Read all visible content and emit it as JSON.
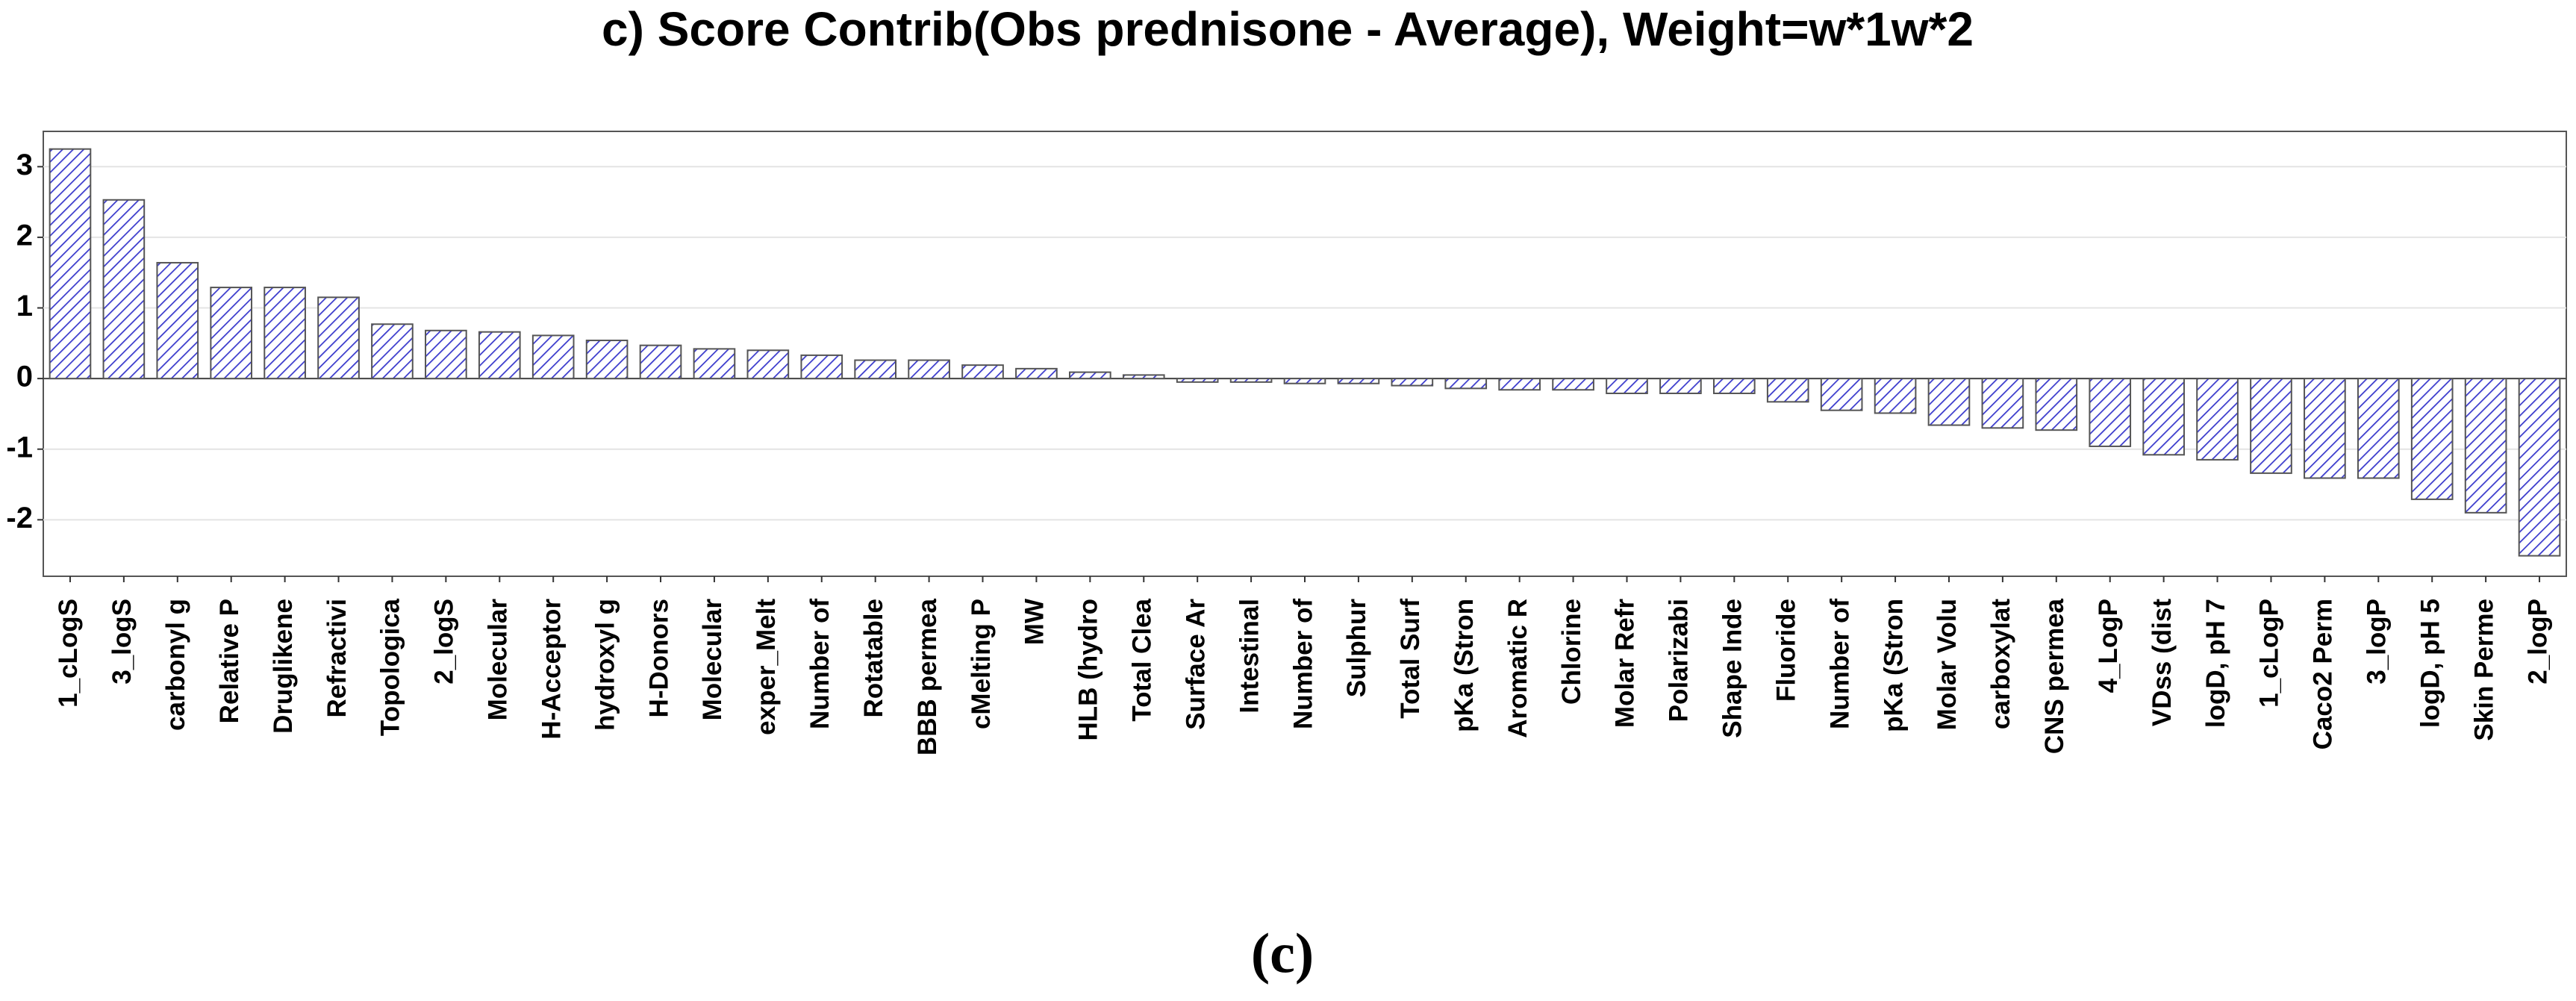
{
  "chart_data": {
    "type": "bar",
    "title": "c) Score Contrib(Obs prednisone - Average), Weight=w*1w*2",
    "caption": "(c)",
    "categories": [
      "1_cLogS",
      "3_logS",
      "carbonyl g",
      "Relative P",
      "Druglikene",
      "Refractivi",
      "Topologica",
      "2_logS",
      "Molecular",
      "H-Acceptor",
      "hydroxyl g",
      "H-Donors",
      "Molecular",
      "exper_Melt",
      "Number of",
      "Rotatable",
      "BBB permea",
      "cMelting P",
      "MW",
      "HLB (hydro",
      "Total Clea",
      "Surface Ar",
      "Intestinal",
      "Number of",
      "Sulphur",
      "Total Surf",
      "pKa (Stron",
      "Aromatic R",
      "Chlorine",
      "Molar Refr",
      "Polarizabi",
      "Shape Inde",
      "Fluoride",
      "Number of",
      "pKa (Stron",
      "Molar Volu",
      "carboxylat",
      "CNS permea",
      "4_LogP",
      "VDss (dist",
      "logD, pH 7",
      "1_cLogP",
      "Caco2 Perm",
      "3_logP",
      "logD, pH 5",
      "Skin Perme",
      "2_logP"
    ],
    "values": [
      3.25,
      2.53,
      1.64,
      1.29,
      1.29,
      1.15,
      0.77,
      0.68,
      0.66,
      0.61,
      0.54,
      0.47,
      0.42,
      0.4,
      0.33,
      0.26,
      0.26,
      0.19,
      0.14,
      0.09,
      0.05,
      -0.05,
      -0.05,
      -0.07,
      -0.07,
      -0.1,
      -0.14,
      -0.16,
      -0.16,
      -0.21,
      -0.21,
      -0.21,
      -0.33,
      -0.45,
      -0.49,
      -0.66,
      -0.7,
      -0.73,
      -0.96,
      -1.08,
      -1.15,
      -1.34,
      -1.41,
      -1.41,
      -1.71,
      -1.9,
      -2.51
    ],
    "color": "#3a3acc",
    "ylim": [
      -2.8,
      3.5
    ],
    "yticks": [
      -2,
      -1,
      0,
      1,
      2,
      3
    ],
    "grid": true
  }
}
